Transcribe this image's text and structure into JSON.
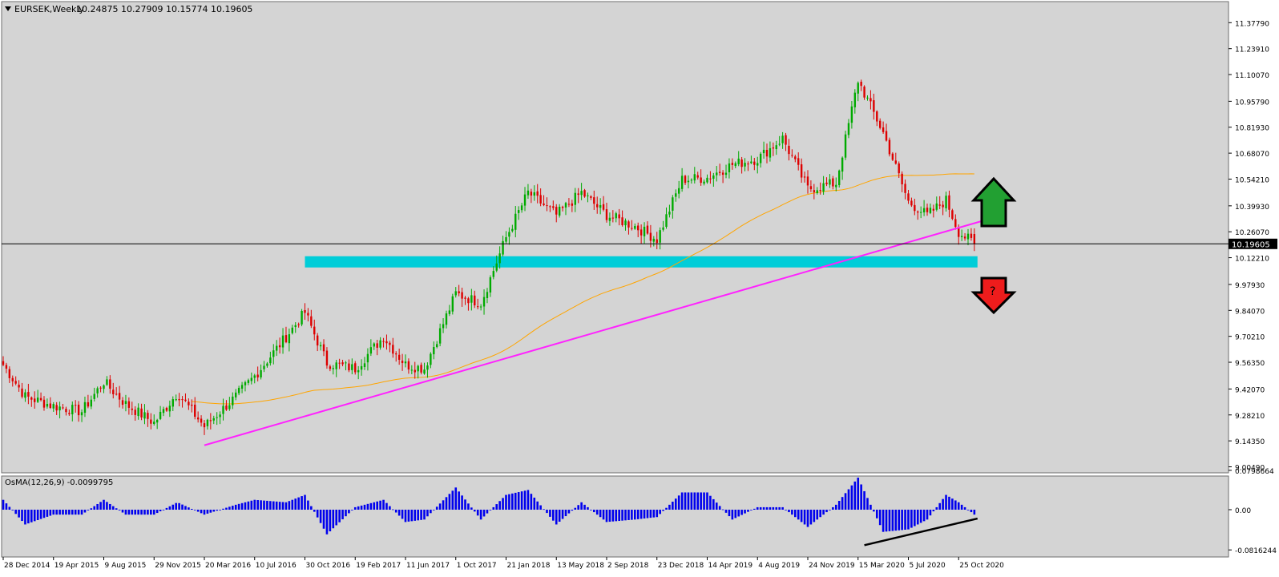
{
  "header": {
    "symbol": "EURSEK,Weekly",
    "ohlc": "10.24875 10.27909 10.15774 10.19605"
  },
  "price_axis": {
    "ticks": [
      "11.37790",
      "11.23910",
      "11.10070",
      "10.95790",
      "10.81930",
      "10.68070",
      "10.54210",
      "10.39930",
      "10.26070",
      "10.12210",
      "9.97930",
      "9.84070",
      "9.70210",
      "9.56350",
      "9.42070",
      "9.28210",
      "9.14350",
      "9.00490"
    ],
    "current_price_label": "10.19605"
  },
  "osma": {
    "label": "OsMA(12,26,9) -0.0099795",
    "ticks": [
      "0.0798664",
      "0.00",
      "-0.0816244"
    ]
  },
  "time_axis": {
    "labels": [
      "28 Dec 2014",
      "19 Apr 2015",
      "9 Aug 2015",
      "29 Nov 2015",
      "20 Mar 2016",
      "10 Jul 2016",
      "30 Oct 2016",
      "19 Feb 2017",
      "11 Jun 2017",
      "1 Oct 2017",
      "21 Jan 2018",
      "13 May 2018",
      "2 Sep 2018",
      "23 Dec 2018",
      "14 Apr 2019",
      "4 Aug 2019",
      "24 Nov 2019",
      "15 Mar 2020",
      "5 Jul 2020",
      "25 Oct 2020"
    ]
  },
  "annotations": {
    "question_mark": "?"
  },
  "colors": {
    "background": "#d4d4d4",
    "bull_candle": "#00aa00",
    "bear_candle": "#dd0000",
    "trendline": "#ff22ff",
    "moving_average": "#ffa500",
    "support_zone": "#00cdd8",
    "histogram": "#0000ee",
    "up_arrow": "#22a032",
    "down_arrow": "#ee1c1c"
  },
  "chart_data": {
    "type": "candlestick",
    "timeframe": "Weekly",
    "symbol": "EURSEK",
    "ylim": [
      9.0049,
      11.4
    ],
    "close_path": [
      {
        "x": "28 Dec 2014",
        "y": 9.55
      },
      {
        "x": "15 Feb 2015",
        "y": 9.38
      },
      {
        "x": "19 Apr 2015",
        "y": 9.33
      },
      {
        "x": "21 Jun 2015",
        "y": 9.3
      },
      {
        "x": "9 Aug 2015",
        "y": 9.46
      },
      {
        "x": "27 Sep 2015",
        "y": 9.34
      },
      {
        "x": "29 Nov 2015",
        "y": 9.24
      },
      {
        "x": "20 Jan 2016",
        "y": 9.4
      },
      {
        "x": "20 Mar 2016",
        "y": 9.22
      },
      {
        "x": "29 May 2016",
        "y": 9.38
      },
      {
        "x": "10 Jul 2016",
        "y": 9.49
      },
      {
        "x": "18 Sep 2016",
        "y": 9.7
      },
      {
        "x": "30 Oct 2016",
        "y": 9.83
      },
      {
        "x": "18 Dec 2016",
        "y": 9.56
      },
      {
        "x": "19 Feb 2017",
        "y": 9.53
      },
      {
        "x": "23 Apr 2017",
        "y": 9.7
      },
      {
        "x": "11 Jun 2017",
        "y": 9.55
      },
      {
        "x": "23 Jul 2017",
        "y": 9.53
      },
      {
        "x": "1 Oct 2017",
        "y": 9.93
      },
      {
        "x": "26 Nov 2017",
        "y": 9.88
      },
      {
        "x": "21 Jan 2018",
        "y": 10.23
      },
      {
        "x": "11 Mar 2018",
        "y": 10.47
      },
      {
        "x": "13 May 2018",
        "y": 10.35
      },
      {
        "x": "8 Jul 2018",
        "y": 10.47
      },
      {
        "x": "2 Sep 2018",
        "y": 10.35
      },
      {
        "x": "4 Nov 2018",
        "y": 10.29
      },
      {
        "x": "23 Dec 2018",
        "y": 10.22
      },
      {
        "x": "17 Feb 2019",
        "y": 10.54
      },
      {
        "x": "14 Apr 2019",
        "y": 10.55
      },
      {
        "x": "9 Jun 2019",
        "y": 10.62
      },
      {
        "x": "4 Aug 2019",
        "y": 10.65
      },
      {
        "x": "29 Sep 2019",
        "y": 10.76
      },
      {
        "x": "24 Nov 2019",
        "y": 10.49
      },
      {
        "x": "26 Jan 2020",
        "y": 10.52
      },
      {
        "x": "15 Mar 2020",
        "y": 11.07
      },
      {
        "x": "10 May 2020",
        "y": 10.79
      },
      {
        "x": "5 Jul 2020",
        "y": 10.42
      },
      {
        "x": "16 Aug 2020",
        "y": 10.35
      },
      {
        "x": "27 Sep 2020",
        "y": 10.43
      },
      {
        "x": "25 Oct 2020",
        "y": 10.26
      },
      {
        "x": "29 Nov 2020",
        "y": 10.196
      }
    ],
    "last_bar": {
      "open": 10.24875,
      "high": 10.27909,
      "low": 10.15774,
      "close": 10.19605
    },
    "support_zone": {
      "from_date": "30 Oct 2016",
      "to_date": "6 Dec 2020",
      "low": 10.07,
      "high": 10.13
    },
    "trendline": {
      "start": {
        "x": "20 Mar 2016",
        "y": 9.12
      },
      "end": {
        "x": "31 Jan 2021",
        "y": 10.35
      }
    },
    "osma_indicator": {
      "name": "OsMA(12,26,9)",
      "last_value": -0.0099795,
      "ylim": [
        -0.0816244,
        0.0798664
      ]
    },
    "osma_path": [
      {
        "x": "28 Dec 2014",
        "y": 0.02
      },
      {
        "x": "15 Feb 2015",
        "y": -0.03
      },
      {
        "x": "19 Apr 2015",
        "y": -0.01
      },
      {
        "x": "21 Jun 2015",
        "y": -0.01
      },
      {
        "x": "9 Aug 2015",
        "y": 0.02
      },
      {
        "x": "27 Sep 2015",
        "y": -0.01
      },
      {
        "x": "29 Nov 2015",
        "y": -0.01
      },
      {
        "x": "20 Jan 2016",
        "y": 0.015
      },
      {
        "x": "20 Mar 2016",
        "y": -0.01
      },
      {
        "x": "29 May 2016",
        "y": 0.01
      },
      {
        "x": "10 Jul 2016",
        "y": 0.02
      },
      {
        "x": "18 Sep 2016",
        "y": 0.015
      },
      {
        "x": "30 Oct 2016",
        "y": 0.03
      },
      {
        "x": "18 Dec 2016",
        "y": -0.05
      },
      {
        "x": "19 Feb 2017",
        "y": 0.005
      },
      {
        "x": "23 Apr 2017",
        "y": 0.02
      },
      {
        "x": "11 Jun 2017",
        "y": -0.025
      },
      {
        "x": "23 Jul 2017",
        "y": -0.02
      },
      {
        "x": "1 Oct 2017",
        "y": 0.045
      },
      {
        "x": "26 Nov 2017",
        "y": -0.02
      },
      {
        "x": "21 Jan 2018",
        "y": 0.03
      },
      {
        "x": "11 Mar 2018",
        "y": 0.04
      },
      {
        "x": "13 May 2018",
        "y": -0.03
      },
      {
        "x": "8 Jul 2018",
        "y": 0.015
      },
      {
        "x": "2 Sep 2018",
        "y": -0.025
      },
      {
        "x": "4 Nov 2018",
        "y": -0.02
      },
      {
        "x": "23 Dec 2018",
        "y": -0.015
      },
      {
        "x": "17 Feb 2019",
        "y": 0.035
      },
      {
        "x": "14 Apr 2019",
        "y": 0.035
      },
      {
        "x": "9 Jun 2019",
        "y": -0.02
      },
      {
        "x": "4 Aug 2019",
        "y": 0.005
      },
      {
        "x": "29 Sep 2019",
        "y": 0.005
      },
      {
        "x": "24 Nov 2019",
        "y": -0.035
      },
      {
        "x": "26 Jan 2020",
        "y": 0.01
      },
      {
        "x": "15 Mar 2020",
        "y": 0.065
      },
      {
        "x": "10 May 2020",
        "y": -0.045
      },
      {
        "x": "5 Jul 2020",
        "y": -0.04
      },
      {
        "x": "16 Aug 2020",
        "y": -0.02
      },
      {
        "x": "27 Sep 2020",
        "y": 0.03
      },
      {
        "x": "25 Oct 2020",
        "y": 0.015
      },
      {
        "x": "29 Nov 2020",
        "y": -0.0099795
      }
    ],
    "osma_divergence_line": {
      "start": {
        "x": "29 Mar 2020",
        "y": -0.072
      },
      "end": {
        "x": "6 Dec 2020",
        "y": -0.018
      }
    }
  }
}
